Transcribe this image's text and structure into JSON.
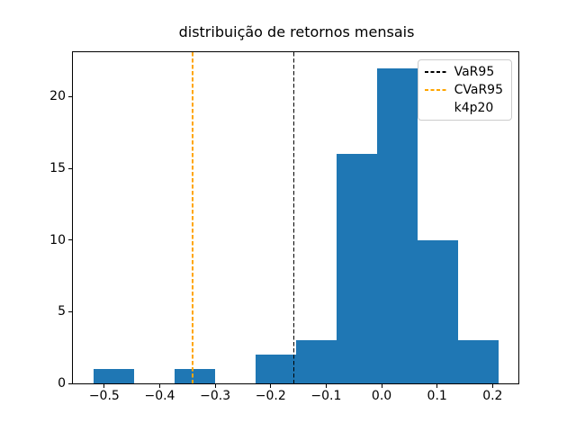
{
  "title": "distribuição de retornos mensais",
  "chart_data": {
    "type": "bar",
    "subtype": "histogram",
    "title": "distribuição de retornos mensais",
    "xlabel": "",
    "ylabel": "",
    "grid": false,
    "bar_color": "#1f77b4",
    "background_color": "#ffffff",
    "bin_edges": [
      -0.52,
      -0.447,
      -0.374,
      -0.301,
      -0.228,
      -0.155,
      -0.082,
      -0.009,
      0.064,
      0.137,
      0.21
    ],
    "counts": [
      1,
      0,
      1,
      0,
      2,
      3,
      16,
      22,
      10,
      3
    ],
    "xlim": [
      -0.5565,
      0.2465
    ],
    "ylim": [
      0,
      23.1
    ],
    "x_ticks": [
      {
        "value": -0.5,
        "label": "−0.5"
      },
      {
        "value": -0.4,
        "label": "−0.4"
      },
      {
        "value": -0.3,
        "label": "−0.3"
      },
      {
        "value": -0.2,
        "label": "−0.2"
      },
      {
        "value": -0.1,
        "label": "−0.1"
      },
      {
        "value": 0.0,
        "label": "0.0"
      },
      {
        "value": 0.1,
        "label": "0.1"
      },
      {
        "value": 0.2,
        "label": "0.2"
      }
    ],
    "y_ticks": [
      {
        "value": 0,
        "label": "0"
      },
      {
        "value": 5,
        "label": "5"
      },
      {
        "value": 10,
        "label": "10"
      },
      {
        "value": 15,
        "label": "15"
      },
      {
        "value": 20,
        "label": "20"
      }
    ],
    "vlines": [
      {
        "name": "VaR95",
        "x": -0.158,
        "color": "#000000",
        "style": "dashed"
      },
      {
        "name": "CVaR95",
        "x": -0.341,
        "color": "#ffa500",
        "style": "dashed"
      }
    ],
    "legend": {
      "position": "upper right",
      "border_color": "#cccccc",
      "items": [
        {
          "label": "VaR95",
          "line_color": "#000000",
          "dashed": true
        },
        {
          "label": "CVaR95",
          "line_color": "#ffa500",
          "dashed": true
        },
        {
          "label": "k4p20",
          "line_color": null,
          "dashed": false
        }
      ]
    }
  }
}
